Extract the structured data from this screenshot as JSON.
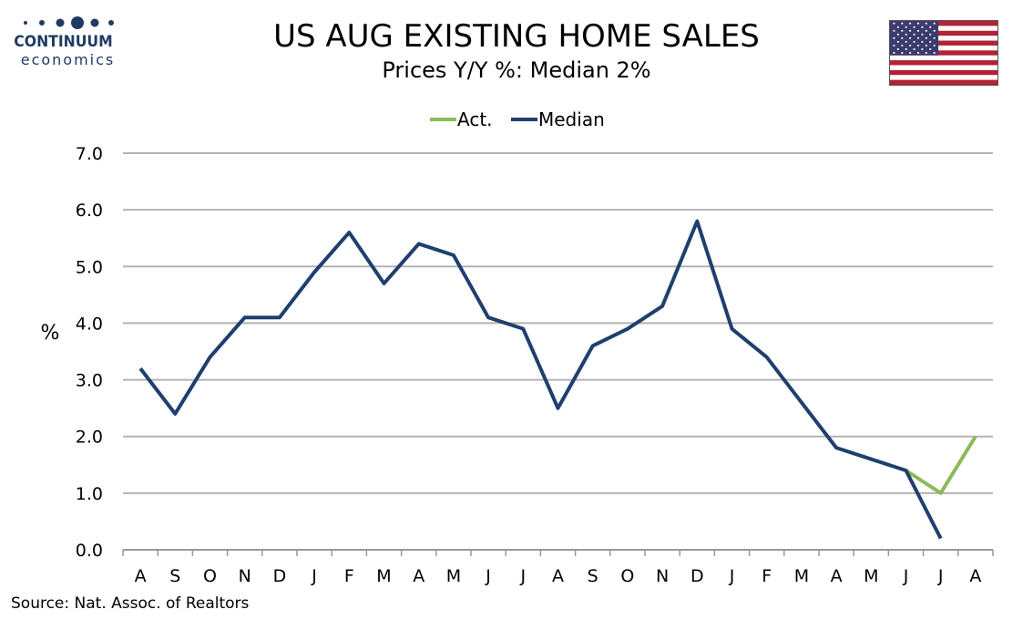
{
  "logo": {
    "brand": "CONTINUUM",
    "sub": "economics"
  },
  "colors": {
    "median": "#1f3f6e",
    "actual": "#8db95a",
    "grid": "#b3b3b3",
    "logo": "#203b63"
  },
  "source": "Source: Nat. Assoc. of Realtors",
  "chart_data": {
    "type": "line",
    "title": "US AUG EXISTING HOME SALES",
    "subtitle": "Prices Y/Y %: Median 2%",
    "ylabel": "%",
    "xlabel": "",
    "ylim": [
      0,
      7
    ],
    "yticks": [
      "0.0",
      "1.0",
      "2.0",
      "3.0",
      "4.0",
      "5.0",
      "6.0",
      "7.0"
    ],
    "grid": true,
    "legend_position": "top-center",
    "categories": [
      "A",
      "S",
      "O",
      "N",
      "D",
      "J",
      "F",
      "M",
      "A",
      "M",
      "J",
      "J",
      "A",
      "S",
      "O",
      "N",
      "D",
      "J",
      "F",
      "M",
      "A",
      "M",
      "J",
      "J",
      "A"
    ],
    "series": [
      {
        "name": "Act.",
        "color": "#8db95a",
        "values": [
          null,
          null,
          null,
          null,
          null,
          null,
          null,
          null,
          null,
          null,
          null,
          null,
          null,
          null,
          null,
          null,
          null,
          null,
          null,
          null,
          null,
          null,
          1.4,
          1.0,
          2.0
        ]
      },
      {
        "name": "Median",
        "color": "#1f3f6e",
        "values": [
          3.2,
          2.4,
          3.4,
          4.1,
          4.1,
          4.9,
          5.6,
          4.7,
          5.4,
          5.2,
          4.1,
          3.9,
          2.5,
          3.6,
          3.9,
          4.3,
          5.8,
          3.9,
          3.4,
          2.6,
          1.8,
          1.6,
          1.4,
          0.2,
          null
        ]
      }
    ]
  }
}
